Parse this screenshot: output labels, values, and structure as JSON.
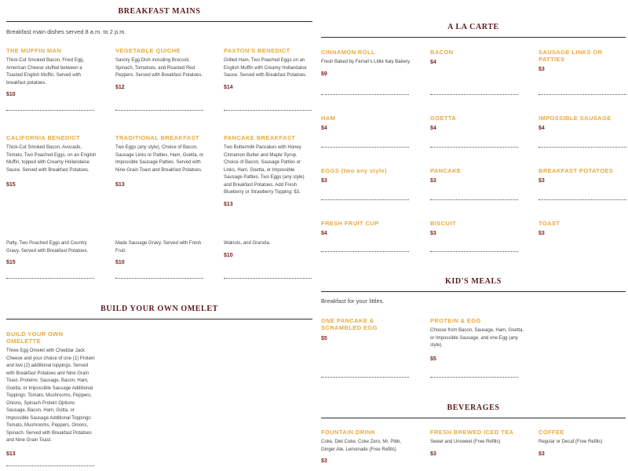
{
  "breakfast_mains": {
    "title": "BREAKFAST MAINS",
    "intro": "Breakfast main dishes served 8 a.m. to 2 p.m.",
    "items": [
      {
        "name": "THE MUFFIN MAN",
        "desc": "Thick-Cut Smoked Bacon, Fried Egg, American Cheese stuffed between a Toasted English Muffin. Served with breakfast potatoes.",
        "price": "$10"
      },
      {
        "name": "VEGETABLE QUICHE",
        "desc": "Savory Egg Dish including Broccoli, Spinach, Tomatoes, and Roasted Red Peppers. Served with Breakfast Potatoes.",
        "price": "$12"
      },
      {
        "name": "PAXTON'S BENEDICT",
        "desc": "Grilled Ham, Two Poached Eggs on an English Muffin with Creamy Hollandaise Sauce. Served with Breakfast Potatoes.",
        "price": "$14"
      },
      {
        "name": "CALIFORNIA BENEDICT",
        "desc": "Thick-Cut Smoked Bacon, Avocado, Tomato, Two Poached Eggs, on an English Muffin, topped with Creamy Hollandaise Sauce. Served with Breakfast Potatoes.",
        "price": "$15"
      },
      {
        "name": "TRADITIONAL BREAKFAST",
        "desc": "Two Eggs (any style), Choice of Bacon, Sausage Links or Patties, Ham, Goetta, or Impossible Sausage Patties. Served with Nine-Grain Toast and Breakfast Potatoes.",
        "price": "$13"
      },
      {
        "name": "PANCAKE BREAKFAST",
        "desc": "Two Buttermilk Pancakes with Honey Cinnamon Butter and Maple Syrup. Choice of Bacon, Sausage Patties or Links, Ham, Goetta, or Impossible Sausage Patties. Two Eggs (any style) and Breakfast Potatoes. Add Fresh Blueberry or Strawberry Topping: $3.",
        "price": "$13"
      },
      {
        "name": "",
        "desc": "Patty, Two Poached Eggs and Country Gravy. Served with Breakfast Potatoes.",
        "price": "$15"
      },
      {
        "name": "",
        "desc": "Made Sausage Gravy. Served with Fresh Fruit.",
        "price": "$10"
      },
      {
        "name": "",
        "desc": "Walnuts, and Granola.",
        "price": "$10"
      }
    ]
  },
  "omelet": {
    "title": "BUILD YOUR OWN OMELET",
    "item": {
      "name": "BUILD YOUR OWN OMELETTE",
      "desc": "Three Egg Omelet with Cheddar Jack Cheese and your choice of one (1) Protein and two (2) additional toppings. Served with Breakfast Potatoes and Nine Grain Toast. Proteins: Sausage, Bacon, Ham, Goetta, or Impossible Sausage Additional Toppings: Tomato, Mushrooms, Peppers, Onions, Spinach Protein Options: Sausage, Bacon, Ham, Gotta, or Impossible Sausage Additional Toppings: Tomato, Mushrooms, Peppers, Onions, Spinach. Served with Breakfast Potatoes and Nine Grain Toast.",
      "price": "$13"
    }
  },
  "a_la_carte": {
    "title": "A LA CARTE",
    "items": [
      {
        "name": "CINNAMON ROLL",
        "desc": "Fresh Baked by Ferrari's Little Italy Bakery.",
        "price": "$9"
      },
      {
        "name": "BACON",
        "desc": "",
        "price": "$4"
      },
      {
        "name": "SAUSAGE LINKS OR PATTIES",
        "desc": "",
        "price": "$3"
      },
      {
        "name": "HAM",
        "desc": "",
        "price": "$4"
      },
      {
        "name": "GOETTA",
        "desc": "",
        "price": "$4"
      },
      {
        "name": "IMPOSSIBLE SAUSAGE",
        "desc": "",
        "price": "$4"
      },
      {
        "name": "EGGS (two any style)",
        "desc": "",
        "price": "$3"
      },
      {
        "name": "PANCAKE",
        "desc": "",
        "price": "$3"
      },
      {
        "name": "BREAKFAST POTATOES",
        "desc": "",
        "price": "$3"
      },
      {
        "name": "FRESH FRUIT CUP",
        "desc": "",
        "price": "$4"
      },
      {
        "name": "BISCUIT",
        "desc": "",
        "price": "$3"
      },
      {
        "name": "TOAST",
        "desc": "",
        "price": "$3"
      }
    ]
  },
  "kids": {
    "title": "KID'S MEALS",
    "intro": "Breakfast for your littles.",
    "items": [
      {
        "name": "ONE PANCAKE & SCRAMBLED EGG",
        "desc": "",
        "price": "$5"
      },
      {
        "name": "PROTEIN & EGG",
        "desc": "Choose from Bacon, Sausage, Ham, Goetta, or Impossible Sausage, and one Egg (any style).",
        "price": "$5"
      }
    ]
  },
  "beverages": {
    "title": "BEVERAGES",
    "items": [
      {
        "name": "FOUNTAIN DRINK",
        "desc": "Coke, Diet Coke, Coke Zero, Mr. Pibb, Ginger Ale, Lemonade (Free Refills)",
        "price": "$3"
      },
      {
        "name": "FRESH BREWED ICED TEA",
        "desc": "Sweet and Unsweet (Free Refills)",
        "price": "$3"
      },
      {
        "name": "COFFEE",
        "desc": "Regular or Decaf (Free Refills)",
        "price": "$3"
      }
    ]
  }
}
